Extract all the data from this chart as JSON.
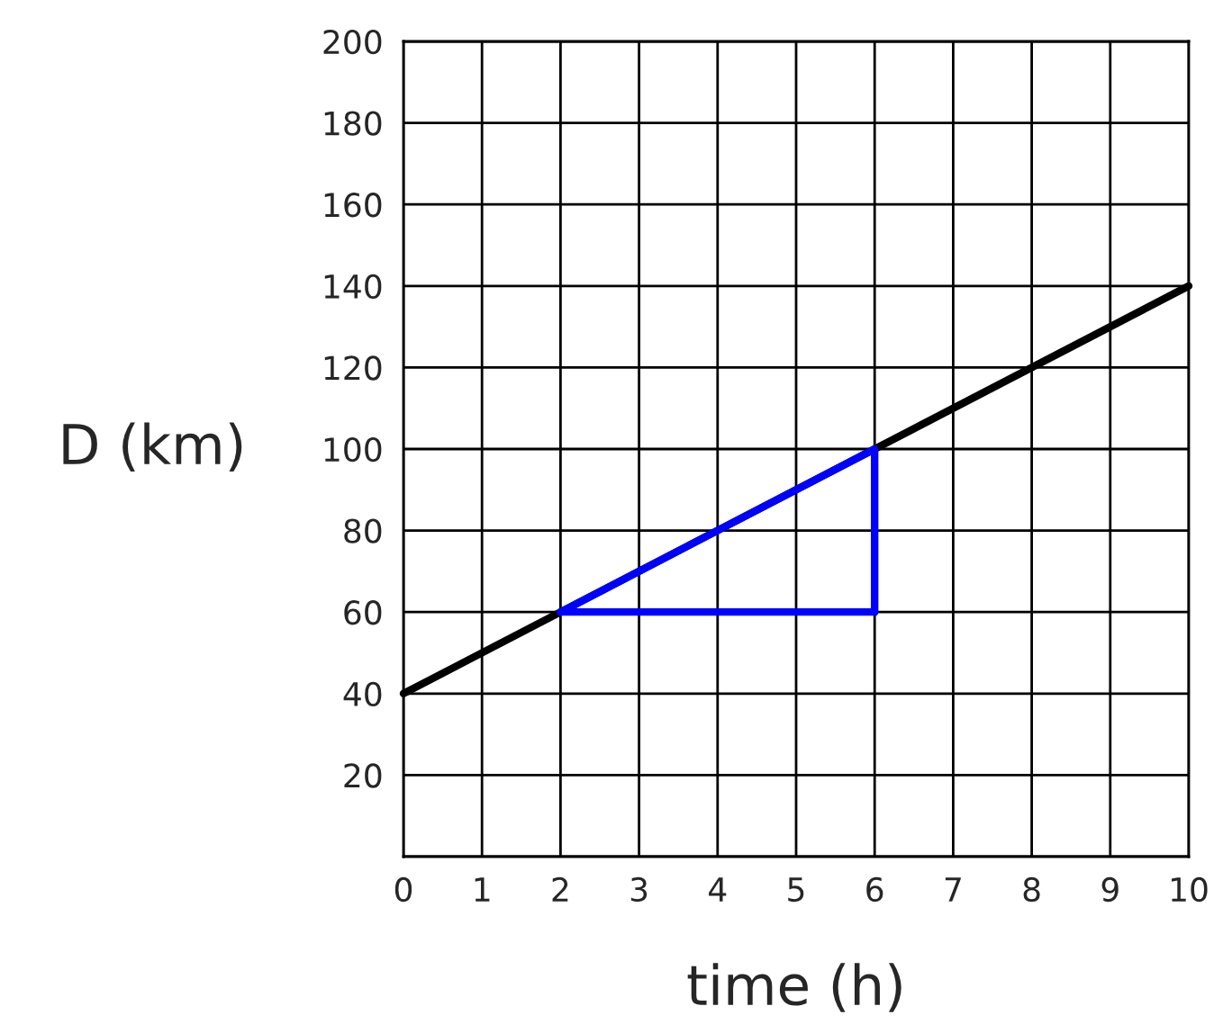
{
  "chart_data": {
    "type": "line",
    "xlabel": "time (h)",
    "ylabel": "D (km)",
    "series": [
      {
        "x": [
          0,
          10
        ],
        "values": [
          40,
          140
        ],
        "color": "#000000"
      },
      {
        "x": [
          2,
          6
        ],
        "values": [
          60,
          100
        ],
        "color": "#0000ff"
      },
      {
        "x": [
          2,
          6
        ],
        "values": [
          60,
          60
        ],
        "color": "#0000ff"
      },
      {
        "x": [
          6,
          6
        ],
        "values": [
          60,
          100
        ],
        "color": "#0000ff"
      }
    ],
    "xlim": [
      0,
      10
    ],
    "ylim": [
      0,
      200
    ],
    "xticks": [
      0,
      1,
      2,
      3,
      4,
      5,
      6,
      7,
      8,
      9,
      10
    ],
    "yticks": [
      {
        "value": 0,
        "label": null
      },
      20,
      40,
      60,
      80,
      100,
      120,
      140,
      160,
      180,
      200
    ],
    "grid": true,
    "marker": "none",
    "line_style": "solid"
  }
}
